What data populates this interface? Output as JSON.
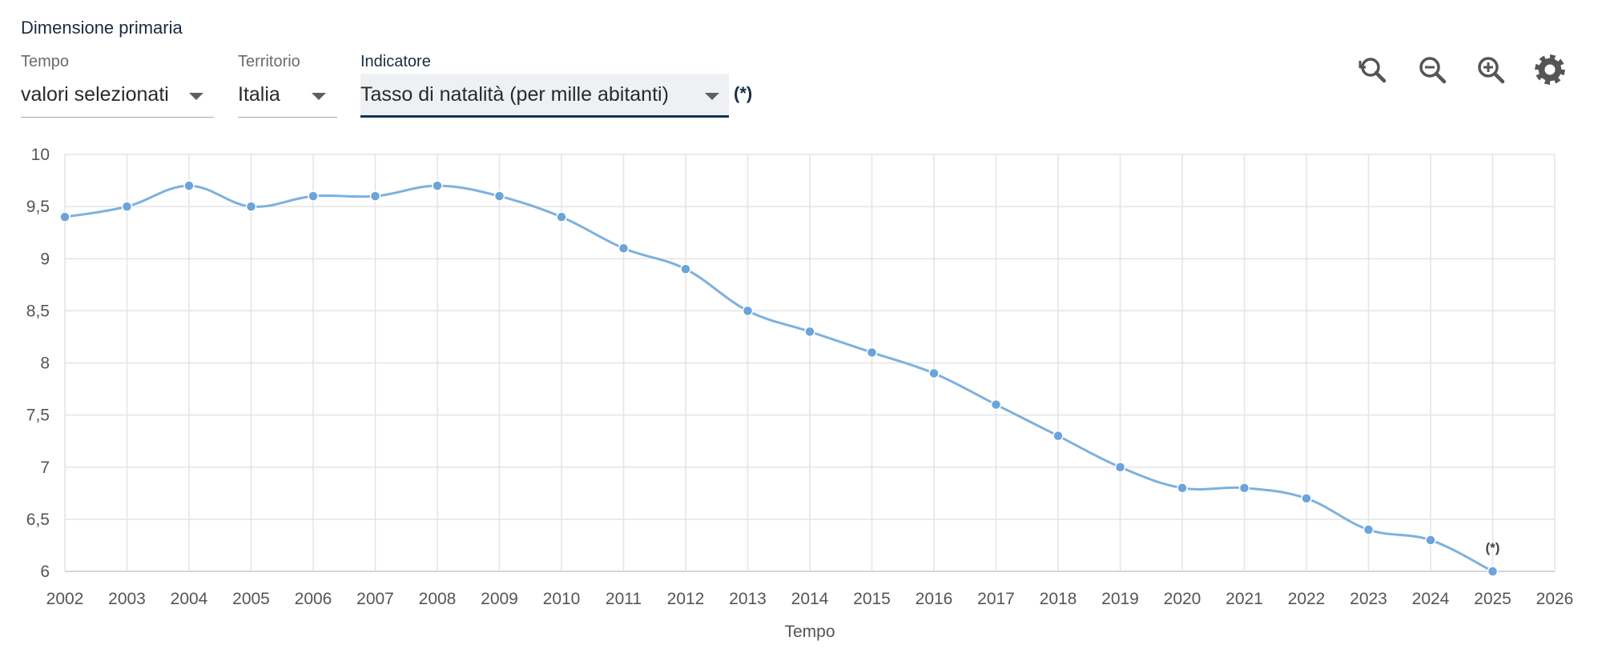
{
  "header": {
    "primary_dimension_label": "Dimensione primaria",
    "note_marker": "(*)"
  },
  "filters": {
    "tempo": {
      "label": "Tempo",
      "value": "valori selezionati"
    },
    "territorio": {
      "label": "Territorio",
      "value": "Italia"
    },
    "indicatore": {
      "label": "Indicatore",
      "value": "Tasso di natalità (per mille abitanti)"
    }
  },
  "toolbar": {
    "icons": [
      "zoom-reset-icon",
      "zoom-out-icon",
      "zoom-in-icon",
      "gear-icon"
    ]
  },
  "colors": {
    "series": "#7cb1df",
    "point": "#6aa4da",
    "grid": "#e4e4e4",
    "axis_text": "#555555",
    "accent": "#17324d"
  },
  "chart_data": {
    "type": "line",
    "xlabel": "Tempo",
    "ylabel": "",
    "x_ticks": [
      "2002",
      "2003",
      "2004",
      "2005",
      "2006",
      "2007",
      "2008",
      "2009",
      "2010",
      "2011",
      "2012",
      "2013",
      "2014",
      "2015",
      "2016",
      "2017",
      "2018",
      "2019",
      "2020",
      "2021",
      "2022",
      "2023",
      "2024",
      "2025",
      "2026"
    ],
    "y_ticks": [
      "6",
      "6,5",
      "7",
      "7,5",
      "8",
      "8,5",
      "9",
      "9,5",
      "10"
    ],
    "xlim": [
      2002,
      2026
    ],
    "ylim": [
      6,
      10
    ],
    "grid": true,
    "series": [
      {
        "x": [
          2002,
          2003,
          2004,
          2005,
          2006,
          2007,
          2008,
          2009,
          2010,
          2011,
          2012,
          2013,
          2014,
          2015,
          2016,
          2017,
          2018,
          2019,
          2020,
          2021,
          2022,
          2023,
          2024,
          2025
        ],
        "values": [
          9.4,
          9.5,
          9.7,
          9.5,
          9.6,
          9.6,
          9.7,
          9.6,
          9.4,
          9.1,
          8.9,
          8.5,
          8.3,
          8.1,
          7.9,
          7.6,
          7.3,
          7.0,
          6.8,
          6.8,
          6.7,
          6.4,
          6.3,
          6.0
        ]
      }
    ],
    "annotations": [
      {
        "x": 2025,
        "y": 6.0,
        "text": "(*)"
      }
    ]
  }
}
